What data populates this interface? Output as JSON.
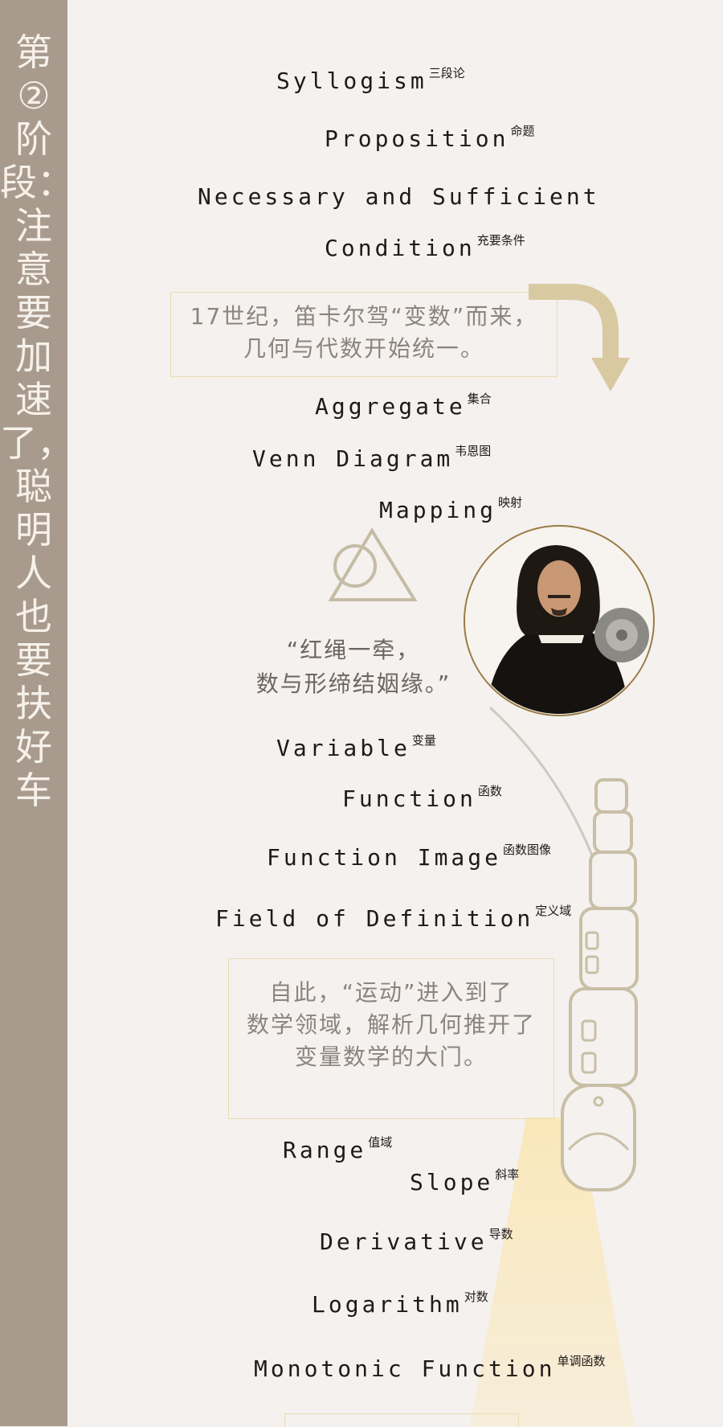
{
  "sidebar": {
    "title": "第②阶段：注意要加速了，聪明人也要扶好车"
  },
  "terms": [
    {
      "en": "Syllogism",
      "zh": "三段论"
    },
    {
      "en": "Proposition",
      "zh": "命题"
    },
    {
      "en": "Necessary and Sufficient",
      "zh": ""
    },
    {
      "en": "Condition",
      "zh": "充要条件"
    },
    {
      "en": "Aggregate",
      "zh": "集合"
    },
    {
      "en": "Venn Diagram",
      "zh": "韦恩图"
    },
    {
      "en": "Mapping",
      "zh": "映射"
    },
    {
      "en": "Variable",
      "zh": "变量"
    },
    {
      "en": "Function",
      "zh": "函数"
    },
    {
      "en": "Function Image",
      "zh": "函数图像"
    },
    {
      "en": "Field of Definition",
      "zh": "定义域"
    },
    {
      "en": "Range",
      "zh": "值域"
    },
    {
      "en": "Slope",
      "zh": "斜率"
    },
    {
      "en": "Derivative",
      "zh": "导数"
    },
    {
      "en": "Logarithm",
      "zh": "对数"
    },
    {
      "en": "Monotonic Function",
      "zh": "单调函数"
    }
  ],
  "box1": {
    "line1": "17世纪，笛卡尔驾“变数”而来，",
    "line2": "几何与代数开始统一。"
  },
  "quote": {
    "line1": "“红绳一牵，",
    "line2": "数与形缔结姻缘。”"
  },
  "box2": {
    "line1": "自此，“运动”进入到了",
    "line2": "数学领域，解析几何推开了",
    "line3": "变量数学的大门。"
  },
  "colors": {
    "sidebar": "#a89b8d",
    "background": "#f4f1ef",
    "accent_gold": "#d8c9a1",
    "box_border": "#eadcb2"
  },
  "icons": [
    "arrow-icon",
    "venn-triangle-icon",
    "descartes-portrait",
    "train-illustration"
  ]
}
